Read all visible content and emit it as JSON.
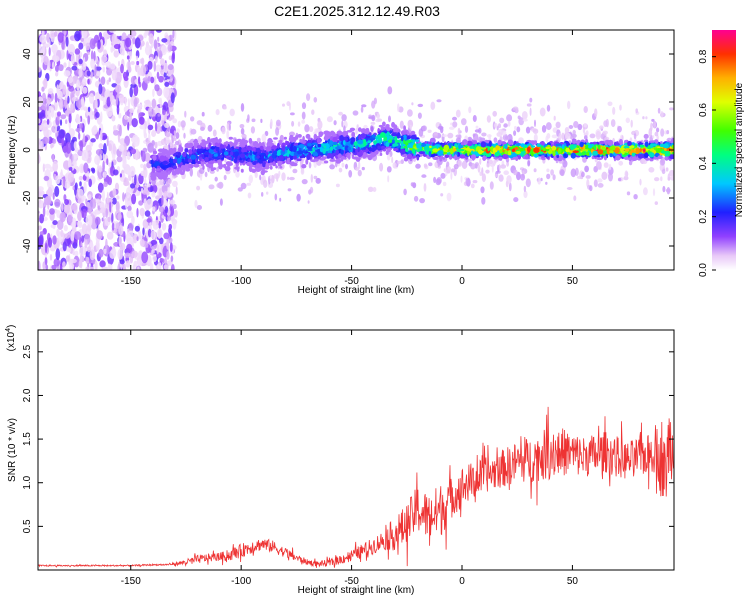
{
  "title": "C2E1.2025.312.12.49.R03",
  "chart_data": [
    {
      "type": "heatmap",
      "title": "C2E1.2025.312.12.49.R03",
      "xlabel": "Height of straight line (km)",
      "ylabel": "Frequency (Hz)",
      "xlim": [
        -192,
        96
      ],
      "ylim": [
        -50,
        50
      ],
      "xticks": [
        -150,
        -100,
        -50,
        0,
        50
      ],
      "xtick_labels": [
        "-150",
        "-100",
        "-50",
        "0",
        "50"
      ],
      "yticks": [
        -40,
        -20,
        0,
        20,
        40
      ],
      "ytick_labels": [
        "-40",
        "-20",
        "0",
        "20",
        "40"
      ],
      "colorbar": {
        "label": "Normalized spectral amplitude",
        "range": [
          0,
          0.9
        ],
        "ticks": [
          0,
          0.2,
          0.4,
          0.6,
          0.8
        ],
        "tick_labels": [
          "0.0",
          "0.2",
          "0.4",
          "0.6",
          "0.8"
        ],
        "colormap": "rainbow"
      },
      "signal_trace": {
        "height_km": [
          -135,
          -125,
          -110,
          -100,
          -90,
          -80,
          -70,
          -60,
          -50,
          -40,
          -35,
          -30,
          -25,
          -20,
          -10,
          0,
          20,
          40,
          60,
          80,
          96
        ],
        "frequency_hz": [
          -6,
          -3,
          -1,
          -2,
          -3,
          -1,
          0,
          1,
          2,
          3,
          5,
          4,
          2,
          1,
          0,
          0,
          0,
          0,
          0,
          0,
          0
        ],
        "peak_amplitude": [
          0.25,
          0.3,
          0.3,
          0.3,
          0.32,
          0.35,
          0.38,
          0.4,
          0.42,
          0.45,
          0.5,
          0.48,
          0.55,
          0.6,
          0.7,
          0.75,
          0.8,
          0.85,
          0.88,
          0.9,
          0.85
        ]
      }
    },
    {
      "type": "line",
      "title": "",
      "xlabel": "Height of straight line (km)",
      "ylabel": "SNR (10 * v/v)",
      "y_multiplier_label": "(x10",
      "y_multiplier_exponent": "4",
      "xlim": [
        -192,
        96
      ],
      "ylim": [
        0,
        2.75
      ],
      "xticks": [
        -150,
        -100,
        -50,
        0,
        50
      ],
      "xtick_labels": [
        "-150",
        "-100",
        "-50",
        "0",
        "50"
      ],
      "yticks": [
        0.5,
        1.0,
        1.5,
        2.0,
        2.5
      ],
      "ytick_labels": [
        "0.5",
        "1.0",
        "1.5",
        "2.0",
        "2.5"
      ],
      "color": "#ee3333",
      "series": [
        {
          "name": "SNR",
          "x": [
            -192,
            -180,
            -170,
            -160,
            -150,
            -140,
            -135,
            -130,
            -125,
            -120,
            -115,
            -110,
            -105,
            -100,
            -95,
            -90,
            -85,
            -80,
            -75,
            -70,
            -65,
            -60,
            -55,
            -50,
            -45,
            -40,
            -35,
            -30,
            -25,
            -20,
            -15,
            -10,
            -5,
            0,
            5,
            10,
            15,
            20,
            25,
            30,
            35,
            40,
            45,
            50,
            55,
            60,
            65,
            70,
            75,
            80,
            85,
            88,
            90,
            92,
            94,
            96
          ],
          "y": [
            0.05,
            0.05,
            0.05,
            0.05,
            0.05,
            0.06,
            0.06,
            0.07,
            0.09,
            0.12,
            0.14,
            0.15,
            0.17,
            0.22,
            0.27,
            0.3,
            0.26,
            0.2,
            0.14,
            0.09,
            0.07,
            0.08,
            0.12,
            0.17,
            0.22,
            0.28,
            0.35,
            0.42,
            0.52,
            0.7,
            0.6,
            0.68,
            0.82,
            0.96,
            1.02,
            1.08,
            1.13,
            1.18,
            1.24,
            1.26,
            1.3,
            1.34,
            1.36,
            1.33,
            1.3,
            1.32,
            1.35,
            1.3,
            1.25,
            1.3,
            1.32,
            1.4,
            1.2,
            1.1,
            1.5,
            1.3
          ],
          "noise_amplitude": [
            0.01,
            0.01,
            0.01,
            0.01,
            0.01,
            0.01,
            0.01,
            0.02,
            0.04,
            0.06,
            0.06,
            0.06,
            0.08,
            0.1,
            0.1,
            0.09,
            0.09,
            0.07,
            0.06,
            0.04,
            0.04,
            0.05,
            0.07,
            0.08,
            0.1,
            0.12,
            0.15,
            0.25,
            0.3,
            0.35,
            0.35,
            0.4,
            0.3,
            0.28,
            0.28,
            0.25,
            0.26,
            0.28,
            0.3,
            0.33,
            0.35,
            0.38,
            0.35,
            0.32,
            0.3,
            0.3,
            0.3,
            0.3,
            0.28,
            0.28,
            0.3,
            0.35,
            0.45,
            0.5,
            0.6,
            0.3
          ]
        }
      ]
    }
  ]
}
